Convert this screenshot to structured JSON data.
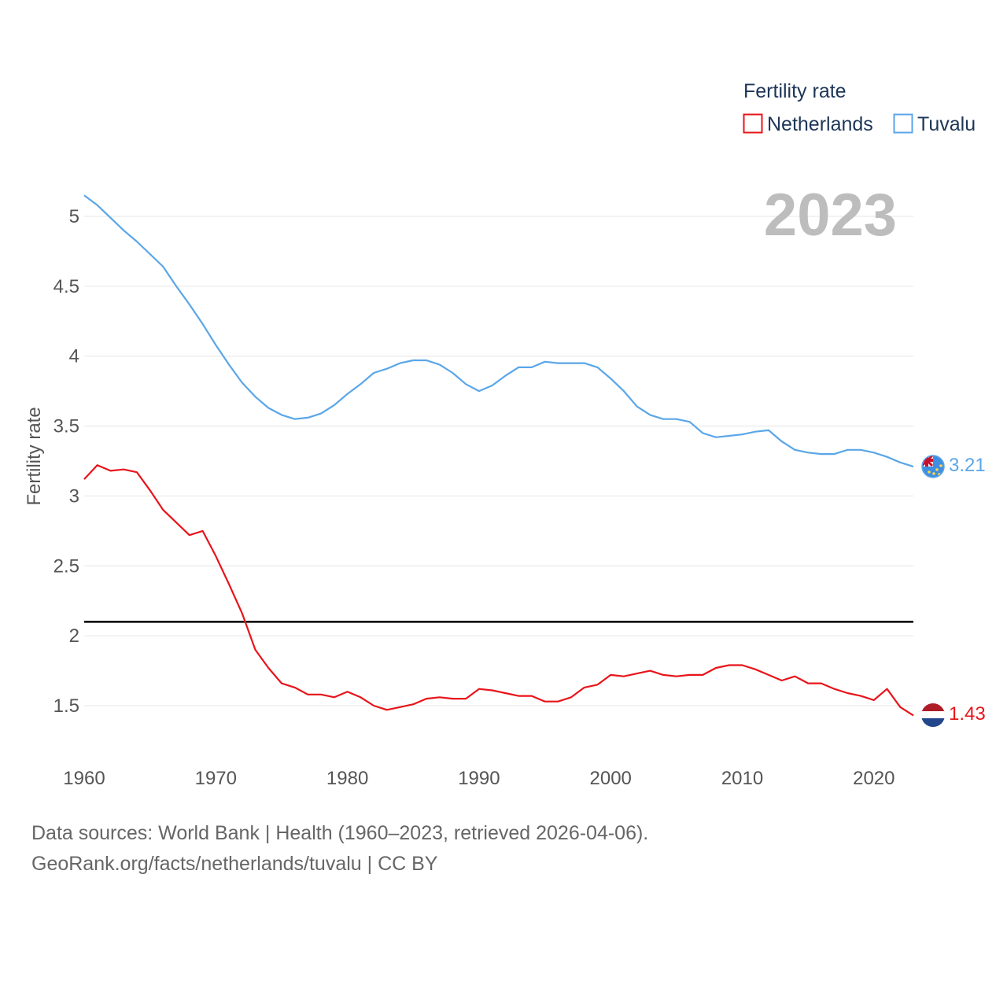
{
  "chart_data": {
    "type": "line",
    "title": "",
    "ylabel": "Fertility rate",
    "xlabel": "",
    "year_label": "2023",
    "ylim": [
      1.2,
      5.3
    ],
    "xlim": [
      1960,
      2023
    ],
    "y_ticks": [
      {
        "value": 1.5,
        "label": "1.5"
      },
      {
        "value": 2,
        "label": "2"
      },
      {
        "value": 2.5,
        "label": "2.5"
      },
      {
        "value": 3,
        "label": "3"
      },
      {
        "value": 3.5,
        "label": "3.5"
      },
      {
        "value": 4,
        "label": "4"
      },
      {
        "value": 4.5,
        "label": "4.5"
      },
      {
        "value": 5,
        "label": "5"
      }
    ],
    "x_ticks": [
      {
        "value": 1960,
        "label": "1960"
      },
      {
        "value": 1970,
        "label": "1970"
      },
      {
        "value": 1980,
        "label": "1980"
      },
      {
        "value": 1990,
        "label": "1990"
      },
      {
        "value": 2000,
        "label": "2000"
      },
      {
        "value": 2010,
        "label": "2010"
      },
      {
        "value": 2020,
        "label": "2020"
      }
    ],
    "reference_line": {
      "value": 2.1
    },
    "legend": {
      "title": "Fertility rate",
      "placement": "top-right"
    },
    "series": [
      {
        "name": "Netherlands",
        "color": "#e8141a",
        "end_label": "1.43",
        "x": [
          1960,
          1961,
          1962,
          1963,
          1964,
          1965,
          1966,
          1967,
          1968,
          1969,
          1970,
          1971,
          1972,
          1973,
          1974,
          1975,
          1976,
          1977,
          1978,
          1979,
          1980,
          1981,
          1982,
          1983,
          1984,
          1985,
          1986,
          1987,
          1988,
          1989,
          1990,
          1991,
          1992,
          1993,
          1994,
          1995,
          1996,
          1997,
          1998,
          1999,
          2000,
          2001,
          2002,
          2003,
          2004,
          2005,
          2006,
          2007,
          2008,
          2009,
          2010,
          2011,
          2012,
          2013,
          2014,
          2015,
          2016,
          2017,
          2018,
          2019,
          2020,
          2021,
          2022,
          2023
        ],
        "values": [
          3.12,
          3.22,
          3.18,
          3.19,
          3.17,
          3.04,
          2.9,
          2.81,
          2.72,
          2.75,
          2.57,
          2.37,
          2.16,
          1.9,
          1.77,
          1.66,
          1.63,
          1.58,
          1.58,
          1.56,
          1.6,
          1.56,
          1.5,
          1.47,
          1.49,
          1.51,
          1.55,
          1.56,
          1.55,
          1.55,
          1.62,
          1.61,
          1.59,
          1.57,
          1.57,
          1.53,
          1.53,
          1.56,
          1.63,
          1.65,
          1.72,
          1.71,
          1.73,
          1.75,
          1.72,
          1.71,
          1.72,
          1.72,
          1.77,
          1.79,
          1.79,
          1.76,
          1.72,
          1.68,
          1.71,
          1.66,
          1.66,
          1.62,
          1.59,
          1.57,
          1.54,
          1.62,
          1.49,
          1.43
        ]
      },
      {
        "name": "Tuvalu",
        "color": "#5aa6e8",
        "end_label": "3.21",
        "x": [
          1960,
          1961,
          1962,
          1963,
          1964,
          1965,
          1966,
          1967,
          1968,
          1969,
          1970,
          1971,
          1972,
          1973,
          1974,
          1975,
          1976,
          1977,
          1978,
          1979,
          1980,
          1981,
          1982,
          1983,
          1984,
          1985,
          1986,
          1987,
          1988,
          1989,
          1990,
          1991,
          1992,
          1993,
          1994,
          1995,
          1996,
          1997,
          1998,
          1999,
          2000,
          2001,
          2002,
          2003,
          2004,
          2005,
          2006,
          2007,
          2008,
          2009,
          2010,
          2011,
          2012,
          2013,
          2014,
          2015,
          2016,
          2017,
          2018,
          2019,
          2020,
          2021,
          2022,
          2023
        ],
        "values": [
          5.15,
          5.08,
          4.99,
          4.9,
          4.82,
          4.73,
          4.64,
          4.5,
          4.37,
          4.23,
          4.08,
          3.94,
          3.81,
          3.71,
          3.63,
          3.58,
          3.55,
          3.56,
          3.59,
          3.65,
          3.73,
          3.8,
          3.88,
          3.91,
          3.95,
          3.97,
          3.97,
          3.94,
          3.88,
          3.8,
          3.75,
          3.79,
          3.86,
          3.92,
          3.92,
          3.96,
          3.95,
          3.95,
          3.95,
          3.92,
          3.84,
          3.75,
          3.64,
          3.58,
          3.55,
          3.55,
          3.53,
          3.45,
          3.42,
          3.43,
          3.44,
          3.46,
          3.47,
          3.39,
          3.33,
          3.31,
          3.3,
          3.3,
          3.33,
          3.33,
          3.31,
          3.28,
          3.24,
          3.21
        ]
      }
    ]
  },
  "footer": {
    "line1": "Data sources: World Bank | Health (1960–2023, retrieved 2026-04-06).",
    "line2": "GeoRank.org/facts/netherlands/tuvalu | CC BY"
  }
}
